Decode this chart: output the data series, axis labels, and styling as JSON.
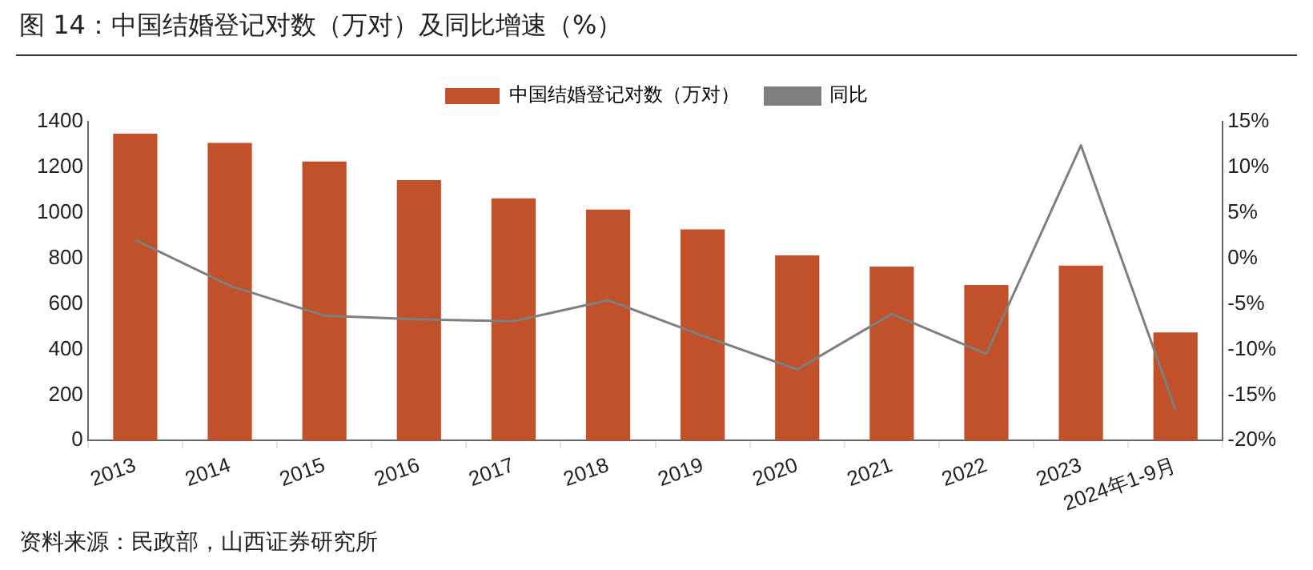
{
  "chart_data": {
    "type": "bar",
    "title": "图 14：中国结婚登记对数（万对）及同比增速（%）",
    "annotations": [
      "资料来源：民政部，山西证券研究所"
    ],
    "categories": [
      "2013",
      "2014",
      "2015",
      "2016",
      "2017",
      "2018",
      "2019",
      "2020",
      "2021",
      "2022",
      "2023",
      "2024年1-9月"
    ],
    "series": [
      {
        "name": "中国结婚登记对数（万对）",
        "color": "#c0512a",
        "values": [
          1347,
          1307,
          1225,
          1143,
          1063,
          1014,
          927,
          813,
          764,
          683,
          768,
          475
        ]
      },
      {
        "name": "同比",
        "type": "line",
        "axis": "y2",
        "color": "#7f7f7f",
        "values": [
          2.0,
          -3.0,
          -6.3,
          -6.7,
          -6.9,
          -4.6,
          -8.5,
          -12.2,
          -6.1,
          -10.5,
          12.4,
          -16.6
        ]
      }
    ],
    "ylim": [
      0,
      1400
    ],
    "yticks": [
      0,
      200,
      400,
      600,
      800,
      1000,
      1200,
      1400
    ],
    "y2lim": [
      -20,
      15
    ],
    "y2ticks": [
      {
        "value": -20,
        "label": "-20%"
      },
      {
        "value": -15,
        "label": "-15%"
      },
      {
        "value": -10,
        "label": "-10%"
      },
      {
        "value": -5,
        "label": "-5%"
      },
      {
        "value": 0,
        "label": "0%"
      },
      {
        "value": 5,
        "label": "5%"
      },
      {
        "value": 10,
        "label": "10%"
      },
      {
        "value": 15,
        "label": "15%"
      }
    ],
    "grid": false,
    "legend": "top",
    "marker": "none"
  }
}
